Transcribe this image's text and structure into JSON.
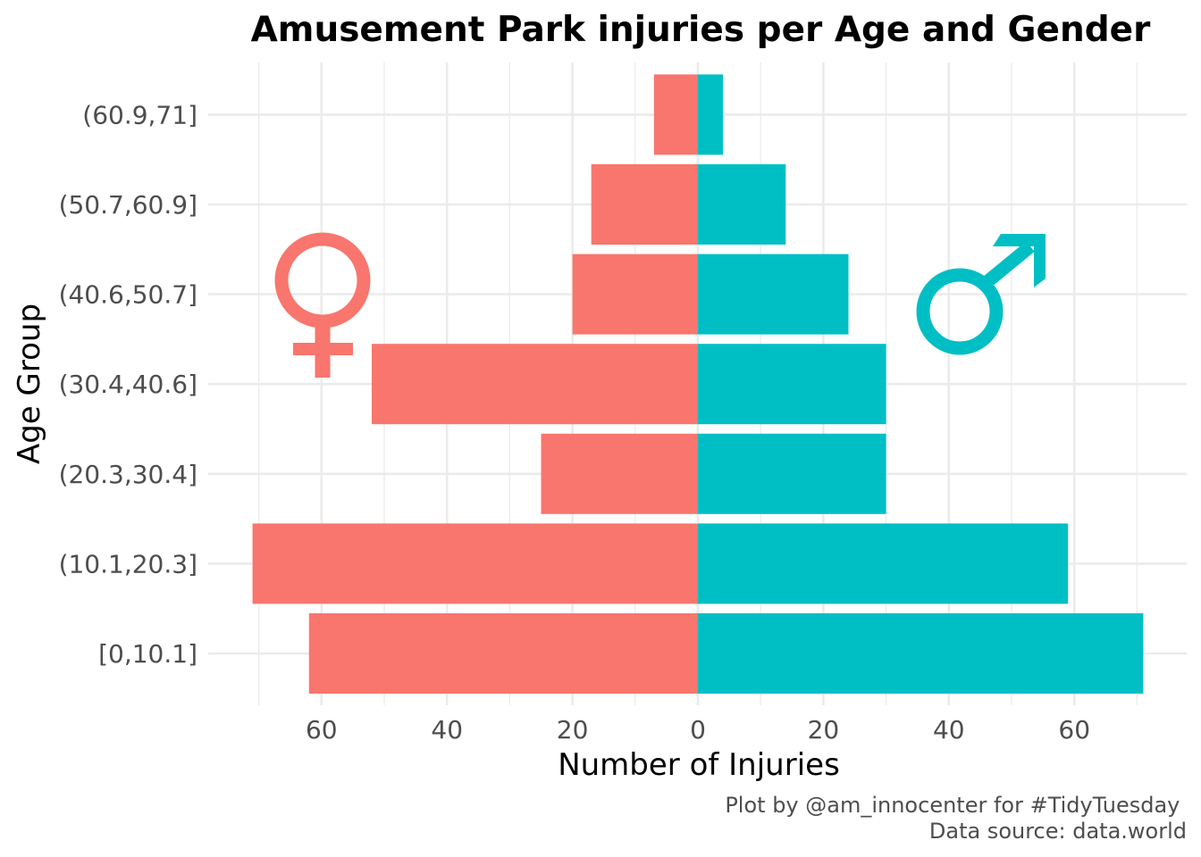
{
  "chart_data": {
    "type": "bar",
    "orientation": "horizontal",
    "layout": "population-pyramid",
    "title": "Amusement Park injuries per Age and Gender",
    "xlabel": "Number of Injuries",
    "ylabel": "Age Group",
    "categories": [
      "[0,10.1]",
      "(10.1,20.3]",
      "(20.3,30.4]",
      "(30.4,40.6]",
      "(40.6,50.7]",
      "(50.7,60.9]",
      "(60.9,71]"
    ],
    "series": [
      {
        "values": [
          62,
          71,
          25,
          52,
          20,
          17,
          7
        ],
        "color": "#F8766D",
        "direction": "left",
        "symbol": "female-symbol-icon"
      },
      {
        "values": [
          71,
          59,
          30,
          30,
          24,
          14,
          4
        ],
        "color": "#00BFC4",
        "direction": "right",
        "symbol": "male-symbol-icon"
      }
    ],
    "xlim": [
      -75,
      72
    ],
    "xticks": [
      -60,
      -40,
      -20,
      0,
      20,
      40,
      60
    ],
    "xtick_labels": [
      "60",
      "40",
      "20",
      "0",
      "20",
      "40",
      "60"
    ],
    "grid": true,
    "legend": "none",
    "caption_lines": [
      "Plot by @am_innocenter for #TidyTuesday ",
      "Data source: data.world"
    ]
  }
}
